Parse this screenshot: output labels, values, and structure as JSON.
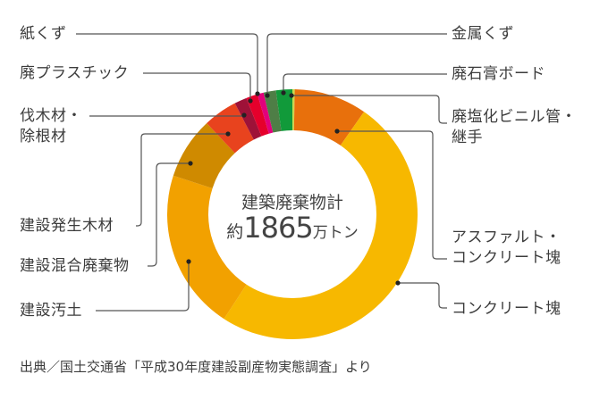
{
  "chart_data": {
    "type": "pie",
    "donut": true,
    "unit": "%",
    "categories": [
      "廃塩化ビニル管・継手",
      "アスファルト・コンクリート塊",
      "コンクリート塊",
      "建設汚土",
      "建設混合廃棄物",
      "建設発生木材",
      "伐木材・除根材",
      "廃プラスチック",
      "紙くず",
      "金属くず",
      "廃石膏ボード"
    ],
    "label_lines": [
      [
        "廃塩化ビニル管・",
        "継手"
      ],
      [
        "アスファルト・",
        "コンクリート塊"
      ],
      [
        "コンクリート塊"
      ],
      [
        "建設汚土"
      ],
      [
        "建設混合廃棄物"
      ],
      [
        "建設発生木材"
      ],
      [
        "伐木材・",
        "除根材"
      ],
      [
        "廃プラスチック"
      ],
      [
        "紙くず"
      ],
      [
        "金属くず"
      ],
      [
        "廃石膏ボード"
      ]
    ],
    "values": [
      0.3,
      9.4,
      49.5,
      20.8,
      8.0,
      4.4,
      1.6,
      1.5,
      0.8,
      1.6,
      2.1
    ],
    "colors": [
      "#c8d850",
      "#e8700c",
      "#f7b800",
      "#f2a100",
      "#cf8a00",
      "#e8431e",
      "#9e1238",
      "#e5002c",
      "#e2007c",
      "#4e7e46",
      "#119a3a"
    ],
    "center_title": "建築廃棄物計",
    "center_prefix": "約",
    "center_value": "1865",
    "center_unit": "万トン",
    "legend": "callout-labels"
  },
  "source": "出典／国土交通省「平成30年度建設副産物実態調査」より"
}
